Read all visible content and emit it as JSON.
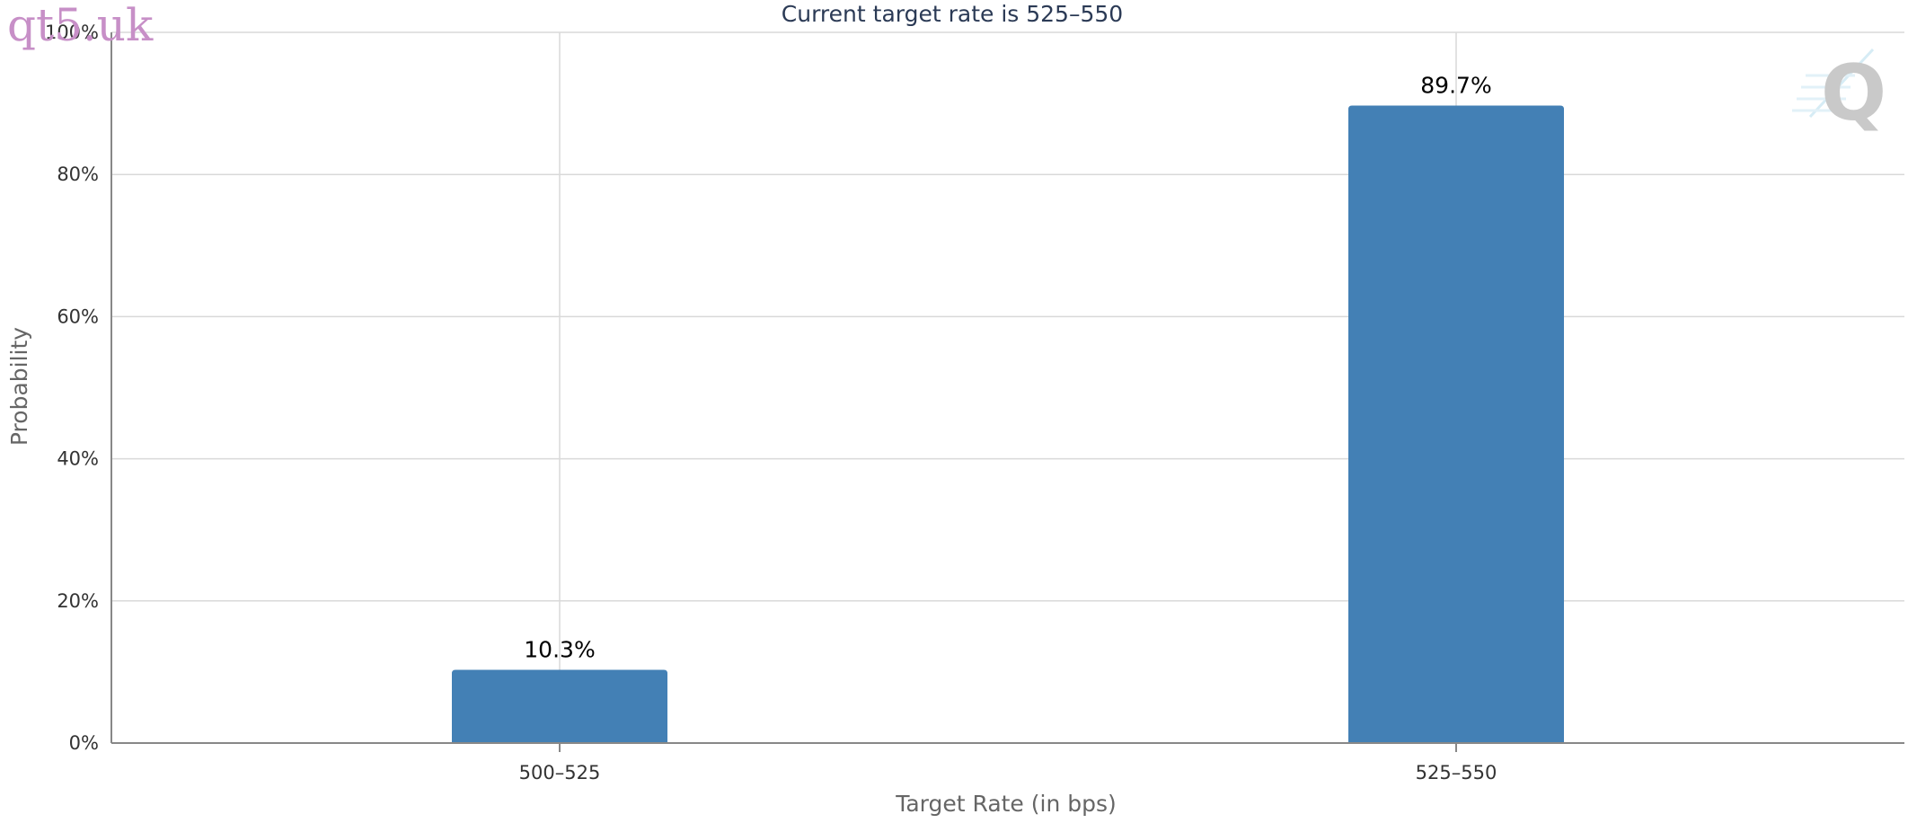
{
  "watermark": "qt5.uk",
  "chart_data": {
    "type": "bar",
    "title": "Current target rate is 525–550",
    "xlabel": "Target Rate (in bps)",
    "ylabel": "Probability",
    "categories": [
      "500–525",
      "525–550"
    ],
    "values": [
      10.3,
      89.7
    ],
    "data_labels": [
      "10.3%",
      "89.7%"
    ],
    "ylim": [
      0,
      100
    ],
    "yticks": [
      0,
      20,
      40,
      60,
      80,
      100
    ],
    "ytick_labels": [
      "0%",
      "20%",
      "40%",
      "60%",
      "80%",
      "100%"
    ],
    "grid": true,
    "legend": "none",
    "bar_color": "#4380b5",
    "logo": "Q-icon"
  }
}
